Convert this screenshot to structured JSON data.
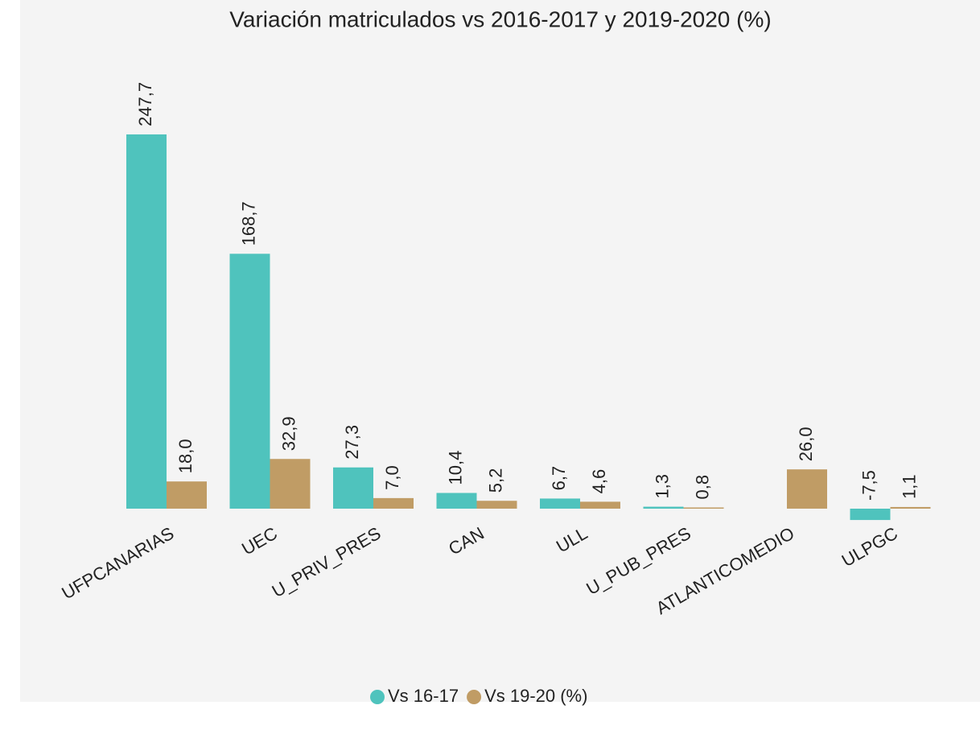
{
  "chart_data": {
    "type": "bar",
    "title": "Variación matriculados vs 2016-2017 y 2019-2020 (%)",
    "categories": [
      "UFPCANARIAS",
      "UEC",
      "U_PRIV_PRES",
      "CAN",
      "ULL",
      "U_PUB_PRES",
      "ATLANTICOMEDIO",
      "ULPGC"
    ],
    "series": [
      {
        "name": "Vs 16-17",
        "color": "#4fc3bd",
        "values": [
          247.7,
          168.7,
          27.3,
          10.4,
          6.7,
          1.3,
          null,
          -7.5
        ],
        "value_labels": [
          "247,7",
          "168,7",
          "27,3",
          "10,4",
          "6,7",
          "1,3",
          null,
          "-7,5"
        ]
      },
      {
        "name": "Vs 19-20 (%)",
        "color": "#c09c65",
        "values": [
          18.0,
          32.9,
          7.0,
          5.2,
          4.6,
          0.8,
          26.0,
          1.1
        ],
        "value_labels": [
          "18,0",
          "32,9",
          "7,0",
          "5,2",
          "4,6",
          "0,8",
          "26,0",
          "1,1"
        ]
      }
    ]
  }
}
